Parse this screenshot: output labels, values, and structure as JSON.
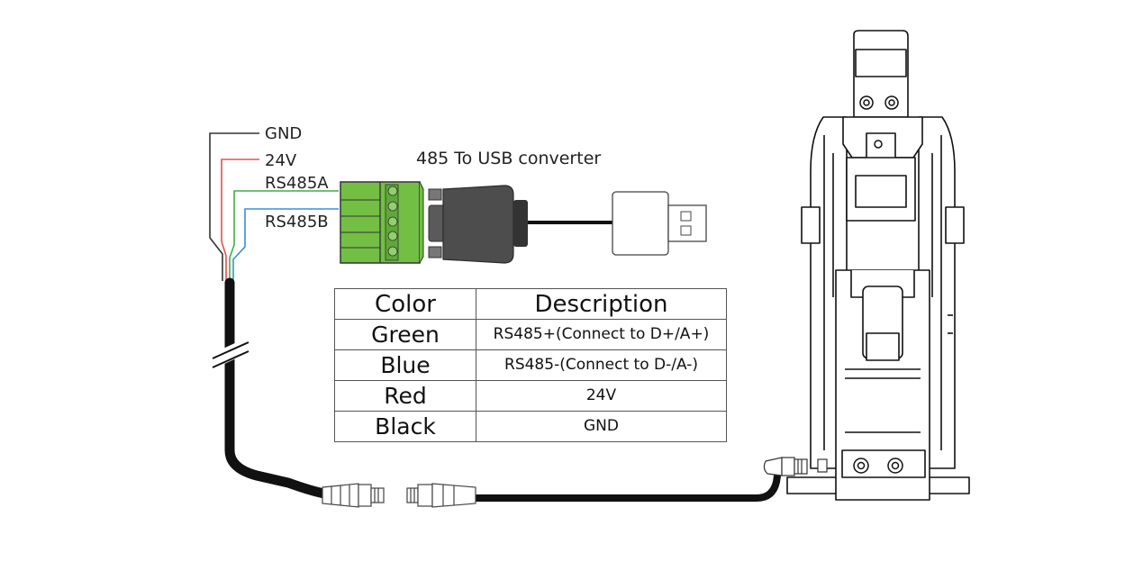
{
  "labels": {
    "gnd": "GND",
    "v24": "24V",
    "rs485a": "RS485A",
    "rs485b": "RS485B",
    "converter": "485 To USB converter"
  },
  "table": {
    "headers": [
      "Color",
      "Description"
    ],
    "rows": [
      {
        "color": "Green",
        "description": "RS485+(Connect to D+/A+)"
      },
      {
        "color": "Blue",
        "description": "RS485-(Connect to D-/A-)"
      },
      {
        "color": "Red",
        "description": "24V"
      },
      {
        "color": "Black",
        "description": "GND"
      }
    ]
  },
  "colors": {
    "gnd_wire": "#333333",
    "v24_wire": "#e05252",
    "rs485a_wire": "#3fae49",
    "rs485b_wire": "#3a8fd6",
    "terminal_block": "#72bf44",
    "connector_body": "#4d4d4d"
  }
}
